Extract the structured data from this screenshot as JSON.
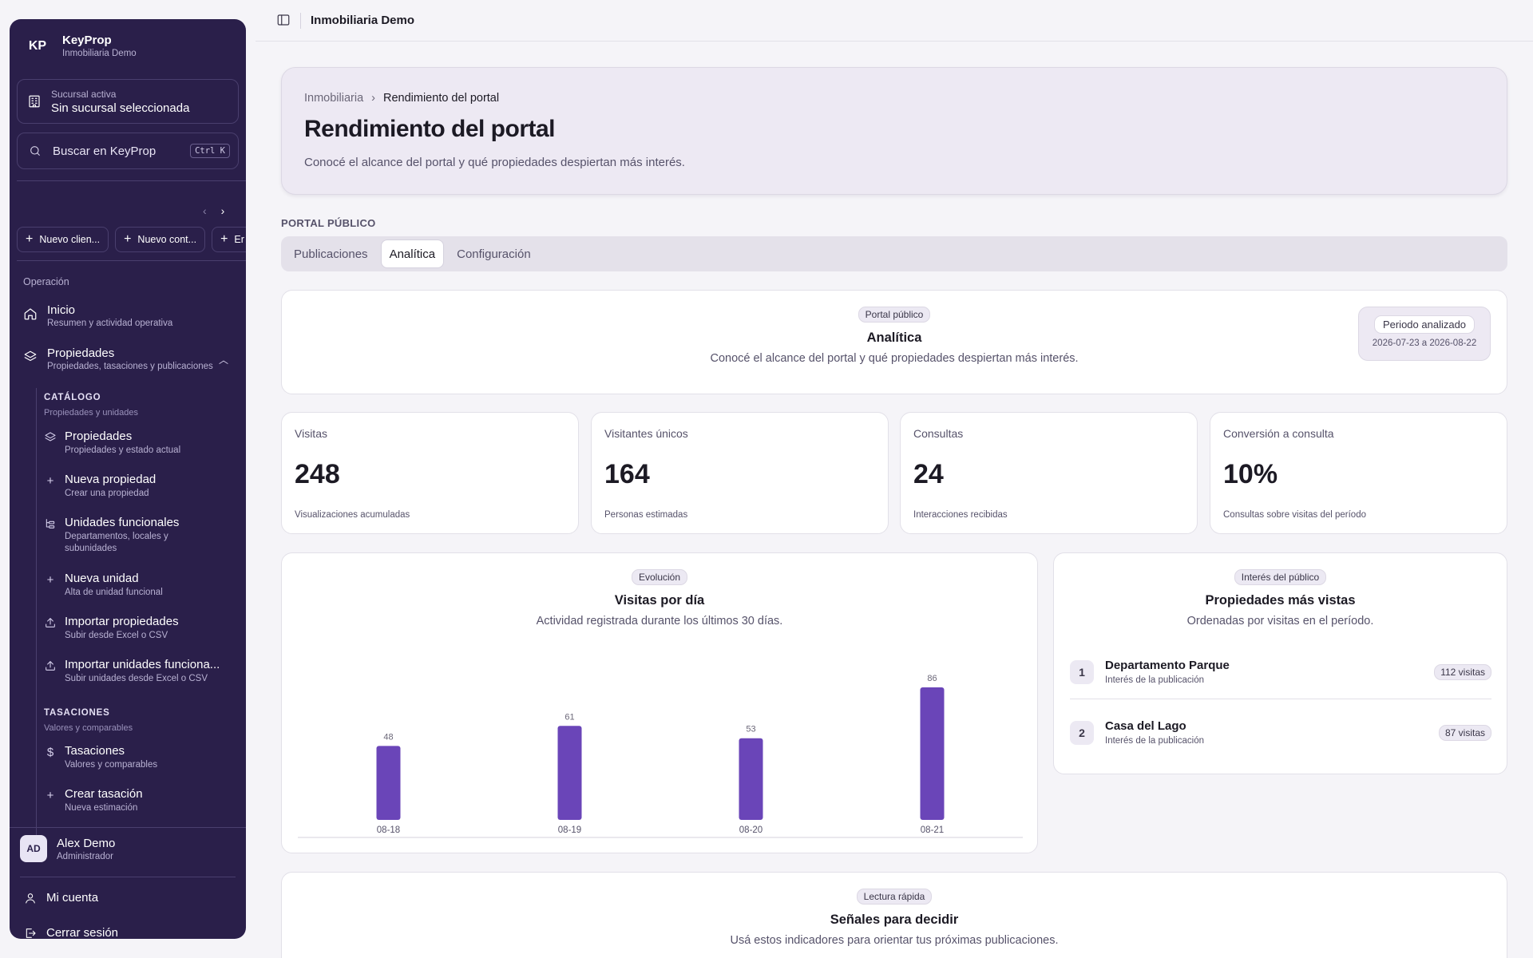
{
  "sidebar": {
    "brand": {
      "logo": "KP",
      "name": "KeyProp",
      "sub": "Inmobiliaria Demo"
    },
    "branch": {
      "label": "Sucursal activa",
      "value": "Sin sucursal seleccionada"
    },
    "search": {
      "placeholder": "Buscar en KeyProp",
      "shortcut": "Ctrl K"
    },
    "quick_actions": [
      "Nuevo clien...",
      "Nuevo cont...",
      "Er"
    ],
    "nav": {
      "section": "Operación",
      "items": [
        {
          "label": "Inicio",
          "sub": "Resumen y actividad operativa",
          "icon": "home-icon"
        },
        {
          "label": "Propiedades",
          "sub": "Propiedades, tasaciones y publicaciones",
          "icon": "layers-icon",
          "expanded": true
        }
      ],
      "catalog": {
        "title": "CATÁLOGO",
        "sub": "Propiedades y unidades",
        "items": [
          {
            "label": "Propiedades",
            "sub": "Propiedades y estado actual",
            "icon": "layers-icon"
          },
          {
            "label": "Nueva propiedad",
            "sub": "Crear una propiedad",
            "icon": "plus-icon"
          },
          {
            "label": "Unidades funcionales",
            "sub": "Departamentos, locales y subunidades",
            "icon": "tree-icon"
          },
          {
            "label": "Nueva unidad",
            "sub": "Alta de unidad funcional",
            "icon": "plus-icon"
          },
          {
            "label": "Importar propiedades",
            "sub": "Subir desde Excel o CSV",
            "icon": "upload-icon"
          },
          {
            "label": "Importar unidades funciona...",
            "sub": "Subir unidades desde Excel o CSV",
            "icon": "upload-icon"
          }
        ]
      },
      "appraisals": {
        "title": "TASACIONES",
        "sub": "Valores y comparables",
        "items": [
          {
            "label": "Tasaciones",
            "sub": "Valores y comparables",
            "icon": "dollar-icon"
          },
          {
            "label": "Crear tasación",
            "sub": "Nueva estimación",
            "icon": "plus-icon"
          }
        ]
      }
    },
    "user": {
      "initials": "AD",
      "name": "Alex Demo",
      "role": "Administrador"
    },
    "footer": {
      "account": "Mi cuenta",
      "logout": "Cerrar sesión"
    }
  },
  "topbar": {
    "title": "Inmobiliaria Demo"
  },
  "hero": {
    "breadcrumb": [
      "Inmobiliaria",
      "Rendimiento del portal"
    ],
    "title": "Rendimiento del portal",
    "description": "Conocé el alcance del portal y qué propiedades despiertan más interés."
  },
  "section_label": "PORTAL PÚBLICO",
  "tabs": [
    {
      "label": "Publicaciones",
      "active": false
    },
    {
      "label": "Analítica",
      "active": true
    },
    {
      "label": "Configuración",
      "active": false
    }
  ],
  "analytics_header": {
    "pill": "Portal público",
    "title": "Analítica",
    "description": "Conocé el alcance del portal y qué propiedades despiertan más interés.",
    "period_label": "Periodo analizado",
    "period_range": "2026-07-23 a 2026-08-22"
  },
  "kpis": [
    {
      "label": "Visitas",
      "value": "248",
      "foot": "Visualizaciones acumuladas"
    },
    {
      "label": "Visitantes únicos",
      "value": "164",
      "foot": "Personas estimadas"
    },
    {
      "label": "Consultas",
      "value": "24",
      "foot": "Interacciones recibidas"
    },
    {
      "label": "Conversión a consulta",
      "value": "10%",
      "foot": "Consultas sobre visitas del período"
    }
  ],
  "chart_card": {
    "pill": "Evolución",
    "title": "Visitas por día",
    "description": "Actividad registrada durante los últimos 30 días."
  },
  "chart_data": {
    "type": "bar",
    "title": "Visitas por día",
    "categories": [
      "08-18",
      "08-19",
      "08-20",
      "08-21"
    ],
    "values": [
      48,
      61,
      53,
      86
    ],
    "xlabel": "",
    "ylabel": "",
    "ylim": [
      0,
      86
    ],
    "grid": false,
    "bar_color": "#6a45b8"
  },
  "most_viewed": {
    "pill": "Interés del público",
    "title": "Propiedades más vistas",
    "description": "Ordenadas por visitas en el período.",
    "items": [
      {
        "rank": "1",
        "name": "Departamento Parque",
        "sub": "Interés de la publicación",
        "visits": "112 visitas"
      },
      {
        "rank": "2",
        "name": "Casa del Lago",
        "sub": "Interés de la publicación",
        "visits": "87 visitas"
      }
    ]
  },
  "signals": {
    "pill": "Lectura rápida",
    "title": "Señales para decidir",
    "description": "Usá estos indicadores para orientar tus próximas publicaciones."
  },
  "colors": {
    "sidebar": "#2a1f4a",
    "accent": "#6a45b8",
    "background": "#f5f4f8"
  }
}
